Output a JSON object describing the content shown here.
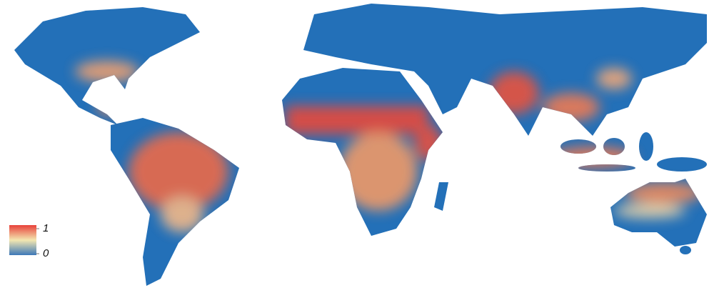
{
  "legend": {
    "max": 1,
    "min": 0
  }
}
